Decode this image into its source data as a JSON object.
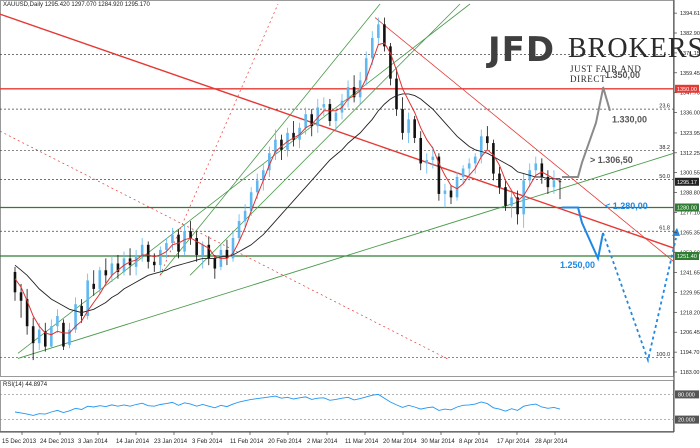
{
  "header": {
    "symbol": "XAUUSD,Daily",
    "ohlc": "1295.420 1297.070 1284.920 1295.170"
  },
  "brand": {
    "name_bold": "JFD",
    "name_rest": "BROKERS",
    "tagline": "JUST FAIR AND DIRECT"
  },
  "rsi": {
    "label": "RSI(14) 44.8974",
    "levels": [
      "80.000",
      "20.000"
    ]
  },
  "colors": {
    "candle_up": "#60b8f0",
    "candle_down": "#111111",
    "ma_fast": "#e03030",
    "ma_slow": "#222222",
    "channel": "#4a9a4a",
    "support": "#2e7d32",
    "resistance": "#e53935",
    "forecast": "#1e88e5",
    "projection": "#8a8a8a",
    "rsi_line": "#2196f3"
  },
  "chart_data": {
    "type": "candlestick",
    "title": "",
    "ylim": [
      1183.0,
      1400.0
    ],
    "y_ticks": [
      1394.61,
      1382.9,
      1371.15,
      1359.45,
      1347.7,
      1336.0,
      1323.95,
      1312.25,
      1300.55,
      1288.8,
      1277.1,
      1265.35,
      1253.6,
      1241.65,
      1229.95,
      1218.2,
      1206.45,
      1194.7,
      1183.0
    ],
    "x_ticks": [
      "15 Dec 2013",
      "24 Dec 2013",
      "3 Jan 2014",
      "14 Jan 2014",
      "23 Jan 2014",
      "3 Feb 2014",
      "11 Feb 2014",
      "20 Feb 2014",
      "2 Mar 2014",
      "11 Mar 2014",
      "20 Mar 2014",
      "30 Mar 2014",
      "8 Apr 2014",
      "17 Apr 2014",
      "28 Apr 2014"
    ],
    "price_tags": [
      {
        "label": "1350.00",
        "value": 1350.0,
        "color": "#e53935"
      },
      {
        "label": "1295.17",
        "value": 1295.17,
        "color": "#222222"
      },
      {
        "label": "1280.00",
        "value": 1280.0,
        "color": "#2e7d32"
      },
      {
        "label": "1251.40",
        "value": 1251.4,
        "color": "#2e7d32"
      }
    ],
    "fib_labels": [
      {
        "label": "23.6",
        "value": 1338.0
      },
      {
        "label": "38.2",
        "value": 1313.5
      },
      {
        "label": "50.0",
        "value": 1296.6
      },
      {
        "label": "61.8",
        "value": 1266.0
      },
      {
        "label": "100.0",
        "value": 1191.5
      }
    ],
    "annotations": [
      {
        "text": "1.350,00",
        "color": "#555555"
      },
      {
        "text": "1.330,00",
        "color": "#555555"
      },
      {
        "text": "> 1.306,50",
        "color": "#555555"
      },
      {
        "text": "< 1.280,00",
        "color": "#1e88e5"
      },
      {
        "text": "1.250,00",
        "color": "#1e88e5"
      }
    ],
    "candles": [
      [
        1242,
        1245,
        1225,
        1230
      ],
      [
        1230,
        1235,
        1215,
        1225
      ],
      [
        1226,
        1232,
        1205,
        1210
      ],
      [
        1210,
        1215,
        1190,
        1200
      ],
      [
        1200,
        1212,
        1196,
        1208
      ],
      [
        1207,
        1212,
        1195,
        1198
      ],
      [
        1198,
        1214,
        1197,
        1210
      ],
      [
        1210,
        1220,
        1206,
        1216
      ],
      [
        1212,
        1214,
        1196,
        1198
      ],
      [
        1199,
        1212,
        1197,
        1208
      ],
      [
        1208,
        1227,
        1206,
        1223
      ],
      [
        1222,
        1226,
        1212,
        1216
      ],
      [
        1216,
        1241,
        1214,
        1237
      ],
      [
        1235,
        1243,
        1228,
        1232
      ],
      [
        1232,
        1245,
        1229,
        1243
      ],
      [
        1243,
        1250,
        1235,
        1240
      ],
      [
        1240,
        1252,
        1236,
        1247
      ],
      [
        1247,
        1252,
        1238,
        1242
      ],
      [
        1242,
        1254,
        1240,
        1250
      ],
      [
        1250,
        1256,
        1240,
        1246
      ],
      [
        1245,
        1255,
        1240,
        1252
      ],
      [
        1252,
        1262,
        1248,
        1258
      ],
      [
        1258,
        1260,
        1244,
        1248
      ],
      [
        1248,
        1253,
        1242,
        1246
      ],
      [
        1246,
        1257,
        1242,
        1255
      ],
      [
        1255,
        1262,
        1250,
        1259
      ],
      [
        1259,
        1268,
        1255,
        1264
      ],
      [
        1264,
        1267,
        1250,
        1254
      ],
      [
        1254,
        1270,
        1252,
        1266
      ],
      [
        1266,
        1272,
        1258,
        1262
      ],
      [
        1262,
        1266,
        1248,
        1252
      ],
      [
        1252,
        1260,
        1244,
        1258
      ],
      [
        1258,
        1263,
        1246,
        1250
      ],
      [
        1250,
        1252,
        1238,
        1244
      ],
      [
        1245,
        1258,
        1243,
        1255
      ],
      [
        1255,
        1261,
        1246,
        1250
      ],
      [
        1250,
        1266,
        1248,
        1262
      ],
      [
        1262,
        1276,
        1260,
        1272
      ],
      [
        1272,
        1282,
        1268,
        1278
      ],
      [
        1278,
        1292,
        1275,
        1289
      ],
      [
        1289,
        1300,
        1285,
        1296
      ],
      [
        1296,
        1306,
        1290,
        1302
      ],
      [
        1302,
        1316,
        1298,
        1312
      ],
      [
        1312,
        1326,
        1308,
        1320
      ],
      [
        1320,
        1323,
        1308,
        1314
      ],
      [
        1314,
        1327,
        1310,
        1324
      ],
      [
        1324,
        1331,
        1316,
        1320
      ],
      [
        1320,
        1330,
        1315,
        1327
      ],
      [
        1327,
        1339,
        1323,
        1335
      ],
      [
        1335,
        1338,
        1322,
        1328
      ],
      [
        1328,
        1344,
        1324,
        1339
      ],
      [
        1339,
        1345,
        1334,
        1341
      ],
      [
        1341,
        1344,
        1328,
        1331
      ],
      [
        1331,
        1338,
        1325,
        1336
      ],
      [
        1336,
        1347,
        1332,
        1343
      ],
      [
        1343,
        1355,
        1339,
        1351
      ],
      [
        1351,
        1358,
        1342,
        1345
      ],
      [
        1345,
        1360,
        1341,
        1355
      ],
      [
        1355,
        1372,
        1352,
        1368
      ],
      [
        1368,
        1384,
        1364,
        1380
      ],
      [
        1380,
        1392,
        1376,
        1388
      ],
      [
        1388,
        1392,
        1372,
        1375
      ],
      [
        1375,
        1377,
        1352,
        1356
      ],
      [
        1356,
        1362,
        1334,
        1338
      ],
      [
        1338,
        1345,
        1320,
        1324
      ],
      [
        1324,
        1336,
        1318,
        1332
      ],
      [
        1332,
        1334,
        1318,
        1321
      ],
      [
        1321,
        1325,
        1302,
        1306
      ],
      [
        1306,
        1312,
        1300,
        1308
      ],
      [
        1308,
        1316,
        1303,
        1310
      ],
      [
        1310,
        1312,
        1284,
        1288
      ],
      [
        1288,
        1294,
        1280,
        1290
      ],
      [
        1290,
        1293,
        1282,
        1286
      ],
      [
        1286,
        1301,
        1284,
        1298
      ],
      [
        1298,
        1305,
        1294,
        1303
      ],
      [
        1303,
        1309,
        1296,
        1306
      ],
      [
        1306,
        1312,
        1300,
        1310
      ],
      [
        1310,
        1326,
        1306,
        1322
      ],
      [
        1322,
        1328,
        1314,
        1318
      ],
      [
        1318,
        1320,
        1296,
        1300
      ],
      [
        1300,
        1304,
        1288,
        1292
      ],
      [
        1292,
        1296,
        1278,
        1281
      ],
      [
        1281,
        1289,
        1274,
        1286
      ],
      [
        1286,
        1290,
        1270,
        1276
      ],
      [
        1276,
        1300,
        1268,
        1296
      ],
      [
        1296,
        1306,
        1292,
        1302
      ],
      [
        1302,
        1310,
        1298,
        1306
      ],
      [
        1306,
        1309,
        1294,
        1298
      ],
      [
        1298,
        1302,
        1288,
        1292
      ],
      [
        1292,
        1302,
        1288,
        1296
      ],
      [
        1295.42,
        1297.07,
        1284.92,
        1295.17
      ]
    ],
    "ma_fast": {
      "name": "",
      "values": [
        1238,
        1233,
        1225,
        1216,
        1210,
        1206,
        1205,
        1207,
        1206,
        1206,
        1210,
        1213,
        1219,
        1224,
        1229,
        1235,
        1240,
        1243,
        1246,
        1248,
        1249,
        1252,
        1252,
        1251,
        1252,
        1254,
        1258,
        1259,
        1261,
        1262,
        1260,
        1258,
        1256,
        1251,
        1250,
        1250,
        1253,
        1260,
        1268,
        1278,
        1287,
        1296,
        1305,
        1313,
        1316,
        1319,
        1321,
        1323,
        1327,
        1329,
        1333,
        1337,
        1337,
        1337,
        1339,
        1344,
        1346,
        1349,
        1356,
        1366,
        1376,
        1377,
        1371,
        1361,
        1350,
        1343,
        1336,
        1327,
        1320,
        1315,
        1306,
        1299,
        1293,
        1291,
        1294,
        1299,
        1303,
        1310,
        1314,
        1311,
        1305,
        1296,
        1290,
        1284,
        1287,
        1293,
        1299,
        1301,
        1299,
        1297,
        1296
      ]
    },
    "ma_slow": {
      "name": "",
      "values": [
        1246,
        1243,
        1240,
        1236,
        1232,
        1229,
        1226,
        1224,
        1222,
        1220,
        1219,
        1218,
        1219,
        1220,
        1222,
        1224,
        1227,
        1229,
        1232,
        1234,
        1236,
        1238,
        1240,
        1241,
        1242,
        1243,
        1245,
        1246,
        1247,
        1248,
        1249,
        1250,
        1250,
        1250,
        1251,
        1251,
        1252,
        1254,
        1256,
        1258,
        1261,
        1264,
        1268,
        1272,
        1276,
        1280,
        1284,
        1288,
        1292,
        1296,
        1300,
        1304,
        1308,
        1311,
        1314,
        1318,
        1321,
        1324,
        1328,
        1332,
        1337,
        1341,
        1344,
        1346,
        1347,
        1347,
        1346,
        1344,
        1341,
        1338,
        1334,
        1330,
        1326,
        1322,
        1319,
        1316,
        1314,
        1313,
        1312,
        1310,
        1308,
        1306,
        1304,
        1301,
        1300,
        1299,
        1298,
        1298,
        1297,
        1297,
        1297
      ]
    },
    "rsi_series": {
      "name": "RSI(14)",
      "values": [
        38,
        36,
        33,
        30,
        34,
        33,
        38,
        42,
        37,
        41,
        47,
        44,
        52,
        50,
        53,
        51,
        55,
        52,
        55,
        52,
        56,
        59,
        53,
        52,
        56,
        58,
        61,
        54,
        60,
        57,
        52,
        56,
        52,
        48,
        54,
        51,
        57,
        62,
        65,
        68,
        70,
        72,
        74,
        76,
        71,
        73,
        69,
        72,
        74,
        68,
        71,
        72,
        66,
        68,
        71,
        73,
        67,
        70,
        74,
        78,
        80,
        71,
        62,
        55,
        49,
        54,
        50,
        45,
        48,
        50,
        42,
        45,
        43,
        50,
        54,
        55,
        57,
        62,
        58,
        48,
        45,
        40,
        46,
        42,
        52,
        55,
        57,
        50,
        47,
        49,
        45
      ]
    }
  }
}
